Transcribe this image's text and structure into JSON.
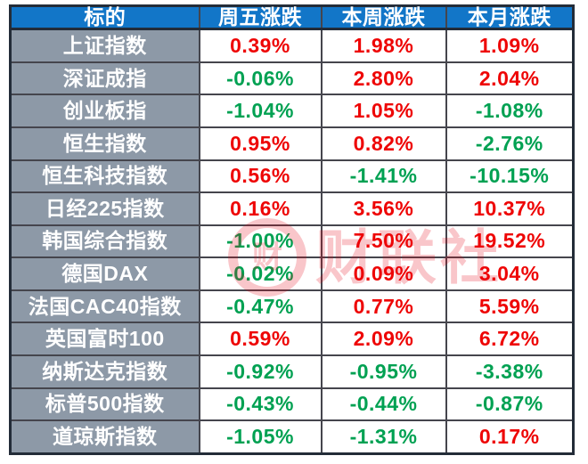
{
  "colors": {
    "header_bg": "#1276c8",
    "header_text": "#ffffff",
    "label_bg": "#8d99a7",
    "label_text": "#ffffff",
    "up": "#ee0505",
    "down": "#00a152",
    "grid": "#45454d",
    "outer_border": "#232c38",
    "watermark": "#e60012"
  },
  "watermark": {
    "text": "财联社",
    "icon_glyph": "财"
  },
  "chart_data": {
    "type": "table",
    "title": "全球主要股指涨跌",
    "columns": [
      "标的",
      "周五涨跌",
      "本周涨跌",
      "本月涨跌"
    ],
    "rows": [
      {
        "label": "上证指数",
        "values": [
          "0.39%",
          "1.98%",
          "1.09%"
        ],
        "colors": [
          "up",
          "up",
          "up"
        ]
      },
      {
        "label": "深证成指",
        "values": [
          "-0.06%",
          "2.80%",
          "2.04%"
        ],
        "colors": [
          "down",
          "up",
          "up"
        ]
      },
      {
        "label": "创业板指",
        "values": [
          "-1.04%",
          "1.05%",
          "-1.08%"
        ],
        "colors": [
          "down",
          "up",
          "down"
        ]
      },
      {
        "label": "恒生指数",
        "values": [
          "0.95%",
          "0.82%",
          "-2.76%"
        ],
        "colors": [
          "up",
          "up",
          "down"
        ]
      },
      {
        "label": "恒生科技指数",
        "values": [
          "0.56%",
          "-1.41%",
          "-10.15%"
        ],
        "colors": [
          "up",
          "down",
          "down"
        ]
      },
      {
        "label": "日经225指数",
        "values": [
          "0.16%",
          "3.56%",
          "10.37%"
        ],
        "colors": [
          "up",
          "up",
          "up"
        ]
      },
      {
        "label": "韩国综合指数",
        "values": [
          "-1.00%",
          "7.50%",
          "19.52%"
        ],
        "colors": [
          "down",
          "up",
          "up"
        ]
      },
      {
        "label": "德国DAX",
        "values": [
          "-0.02%",
          "0.09%",
          "3.04%"
        ],
        "colors": [
          "down",
          "up",
          "up"
        ]
      },
      {
        "label": "法国CAC40指数",
        "values": [
          "-0.47%",
          "0.77%",
          "5.59%"
        ],
        "colors": [
          "down",
          "up",
          "up"
        ]
      },
      {
        "label": "英国富时100",
        "values": [
          "0.59%",
          "2.09%",
          "6.72%"
        ],
        "colors": [
          "up",
          "up",
          "up"
        ]
      },
      {
        "label": "纳斯达克指数",
        "values": [
          "-0.92%",
          "-0.95%",
          "-3.38%"
        ],
        "colors": [
          "down",
          "down",
          "down"
        ]
      },
      {
        "label": "标普500指数",
        "values": [
          "-0.43%",
          "-0.44%",
          "-0.87%"
        ],
        "colors": [
          "down",
          "down",
          "down"
        ]
      },
      {
        "label": "道琼斯指数",
        "values": [
          "-1.05%",
          "-1.31%",
          "0.17%"
        ],
        "colors": [
          "down",
          "down",
          "up"
        ]
      }
    ]
  }
}
